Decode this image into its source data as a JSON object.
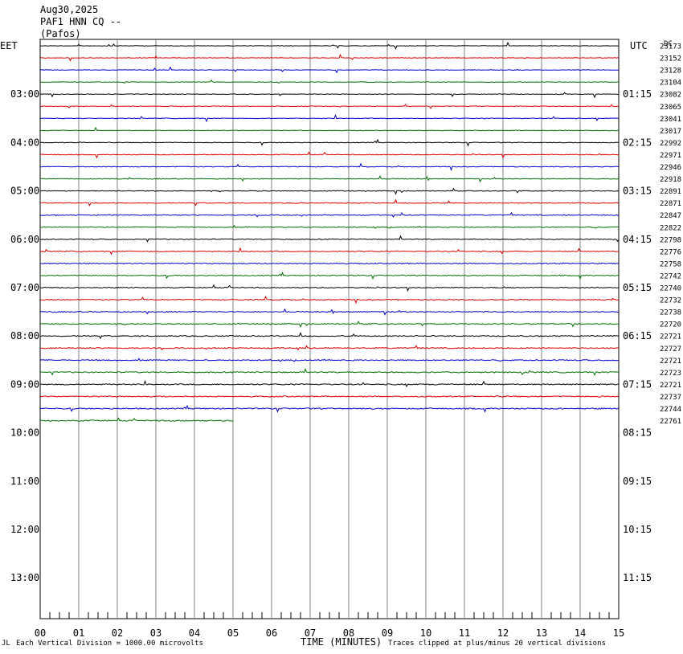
{
  "header": {
    "date": "Aug30,2025",
    "station": "PAF1 HNN CQ --",
    "location": "(Pafos)"
  },
  "chart_data": {
    "type": "line",
    "left_axis_label": "EET",
    "right_axis_label": "UTC",
    "dc_label": "DC",
    "left_hour_labels": [
      "03:00",
      "04:00",
      "05:00",
      "06:00",
      "07:00",
      "08:00",
      "09:00",
      "10:00",
      "11:00",
      "12:00",
      "13:00"
    ],
    "right_hour_labels": [
      "01:15",
      "02:15",
      "03:15",
      "04:15",
      "05:15",
      "06:15",
      "07:15",
      "08:15",
      "09:15",
      "10:15",
      "11:15"
    ],
    "x_tick_labels": [
      "00",
      "01",
      "02",
      "03",
      "04",
      "05",
      "06",
      "07",
      "08",
      "09",
      "10",
      "11",
      "12",
      "13",
      "14",
      "15"
    ],
    "xlabel": "TIME (MINUTES)",
    "xlim": [
      0,
      15
    ],
    "trace_colors": [
      "#000000",
      "#e00000",
      "#0000d0",
      "#007000"
    ],
    "trace_dc_offsets": [
      23173,
      23152,
      23128,
      23104,
      23082,
      23065,
      23041,
      23017,
      22992,
      22971,
      22946,
      22918,
      22891,
      22871,
      22847,
      22822,
      22798,
      22776,
      22758,
      22742,
      22740,
      22732,
      22738,
      22720,
      22721,
      22727,
      22721,
      22723,
      22721,
      22737,
      22744,
      22761
    ],
    "last_trace_end_minute": 5.0
  },
  "footer": {
    "scale_note": "Each Vertical Division = 1000.00 microvolts",
    "clip_note": "Traces clipped at plus/minus 20 vertical divisions"
  }
}
